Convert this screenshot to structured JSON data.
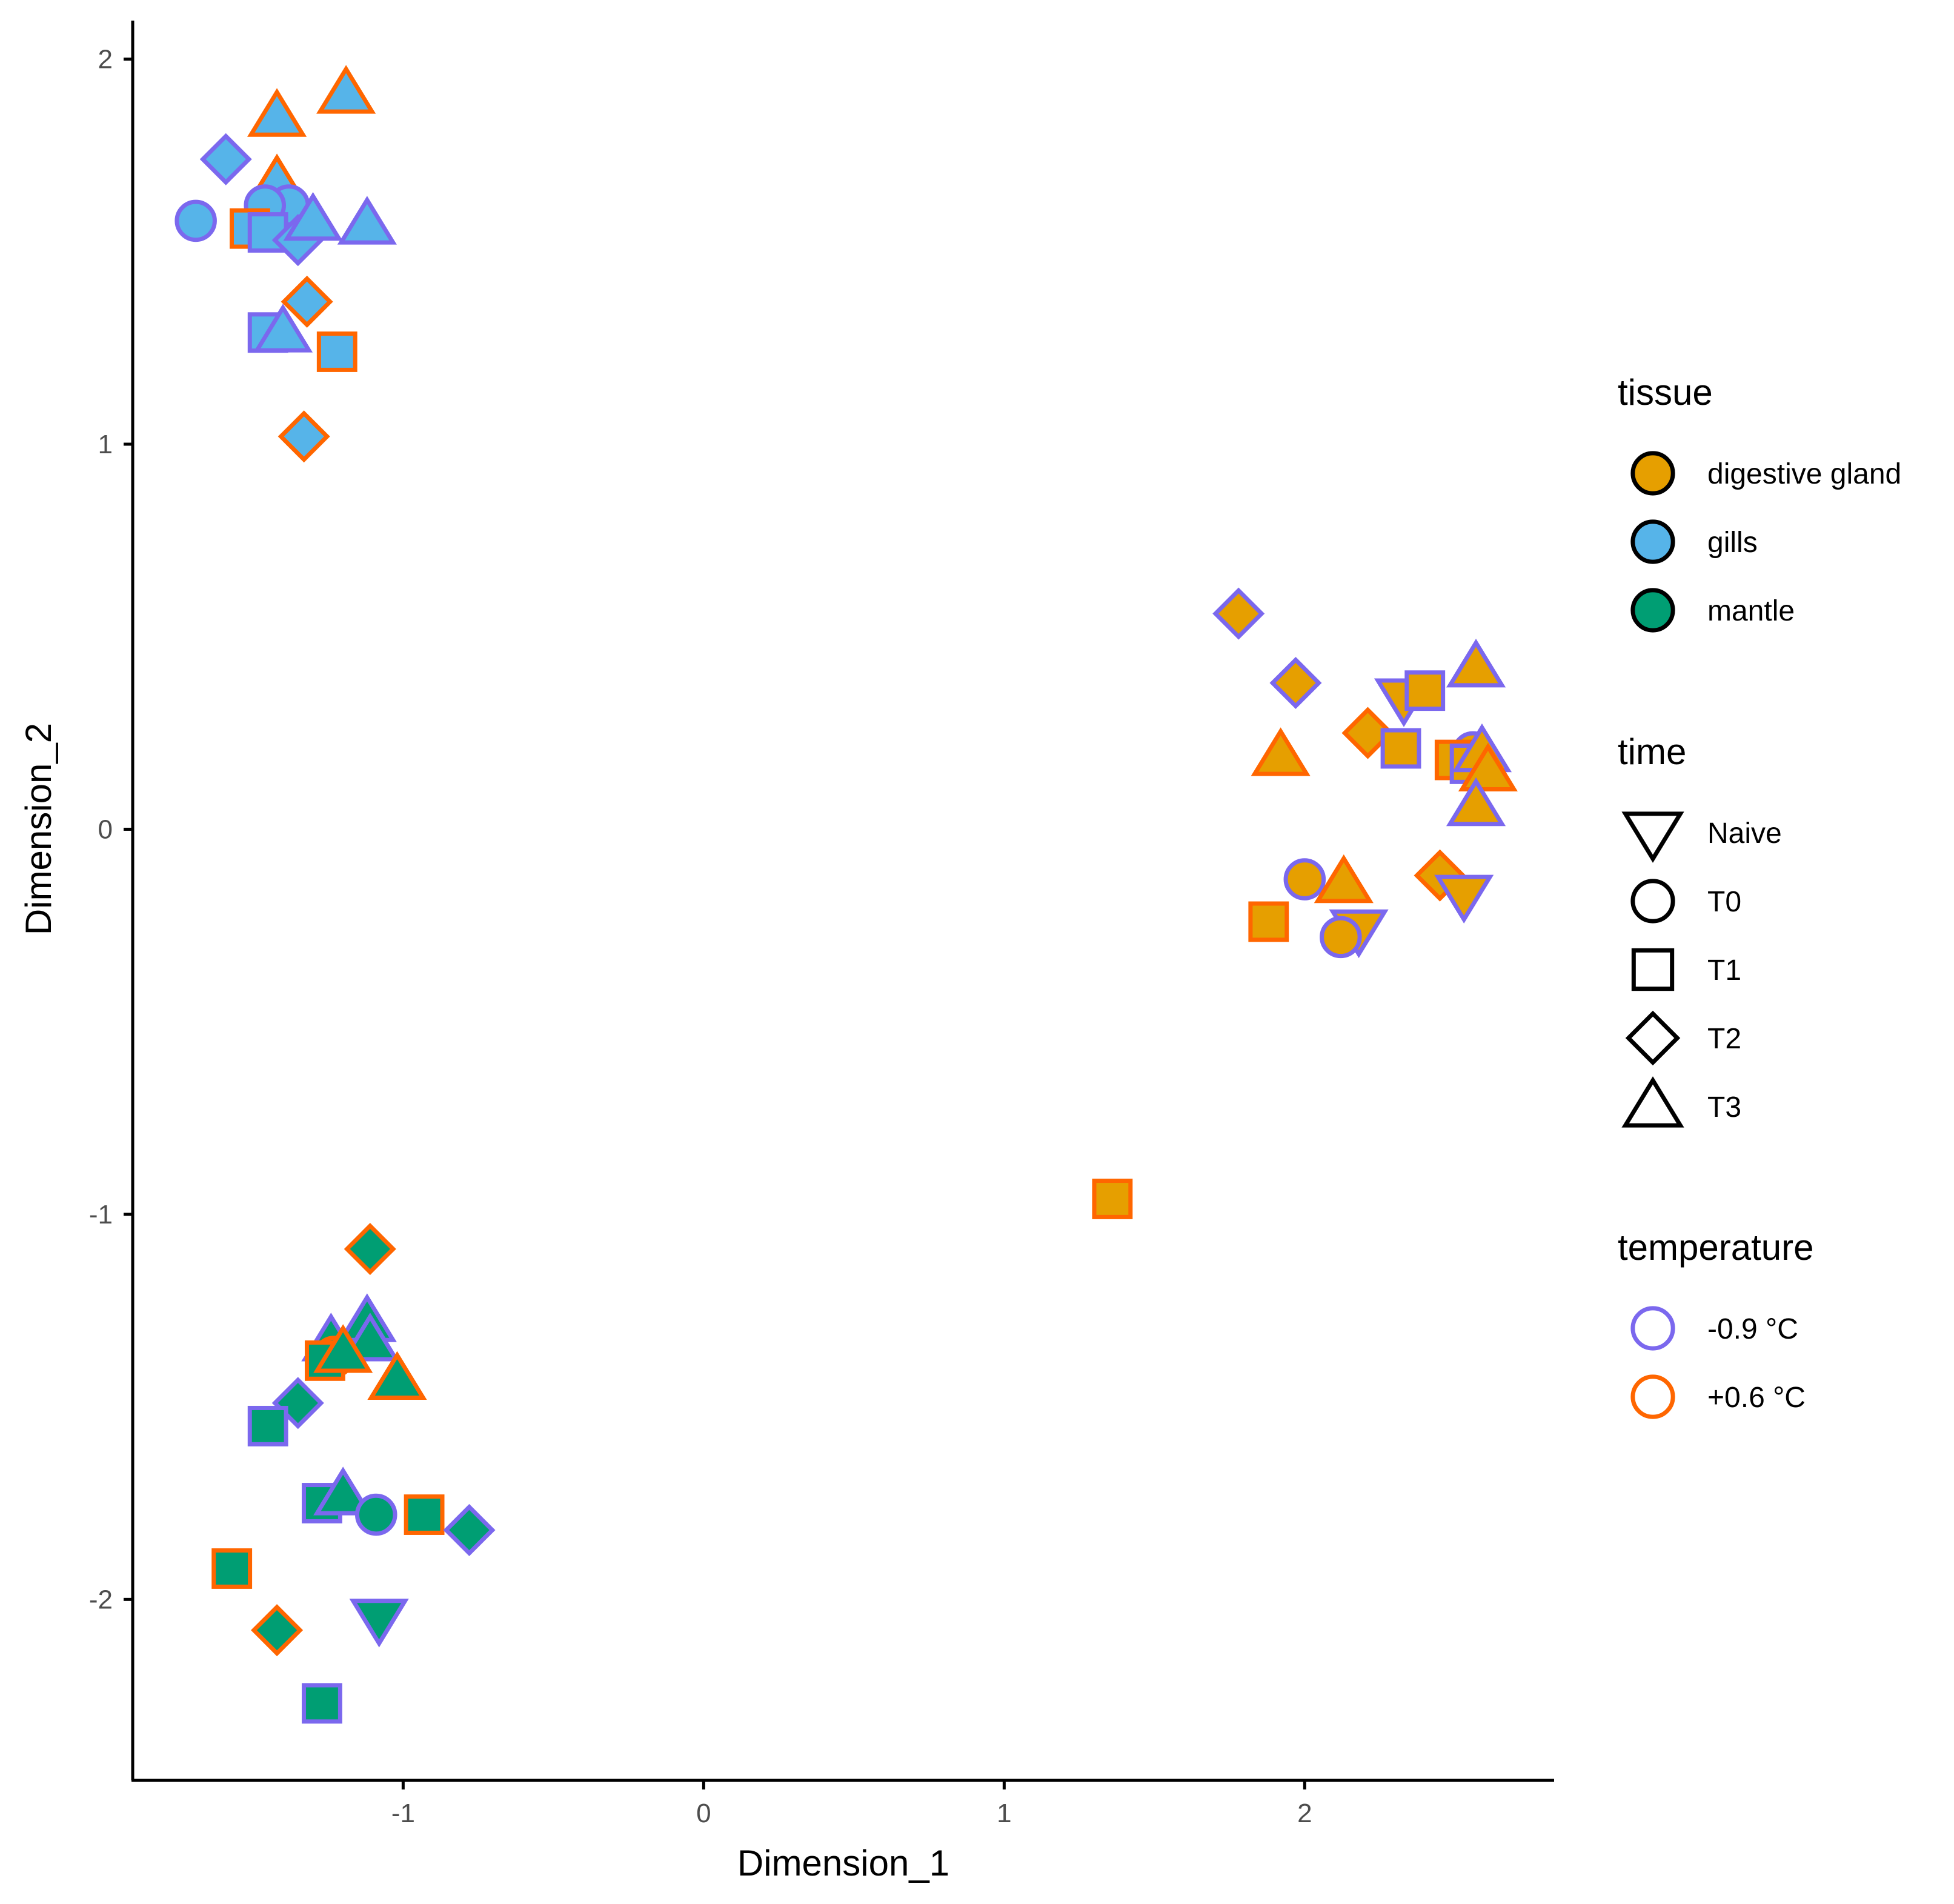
{
  "chart_data": {
    "type": "scatter",
    "xlabel": "Dimension_1",
    "ylabel": "Dimension_2",
    "xlim": [
      -1.9,
      2.83
    ],
    "ylim": [
      -2.47,
      2.1
    ],
    "xticks": [
      -1,
      0,
      1,
      2
    ],
    "yticks": [
      -2,
      -1,
      0,
      1,
      2
    ],
    "xtick_labels": [
      "-1",
      "0",
      "1",
      "2"
    ],
    "ytick_labels": [
      "-2",
      "-1",
      "0",
      "1",
      "2"
    ],
    "grid": false,
    "legend_position": "right",
    "colors": {
      "digestive gland": "#E69F00",
      "gills": "#56B4E9",
      "mantle": "#009E73",
      "-0.9 °C": "#7B68EE",
      "+0.6 °C": "#FF6600"
    },
    "legends": [
      {
        "title": "tissue",
        "kind": "fill",
        "items": [
          {
            "label": "digestive gland",
            "fill": "#E69F00"
          },
          {
            "label": "gills",
            "fill": "#56B4E9"
          },
          {
            "label": "mantle",
            "fill": "#009E73"
          }
        ]
      },
      {
        "title": "time",
        "kind": "shape",
        "items": [
          {
            "label": "Naive",
            "shape": "triangle-down"
          },
          {
            "label": "T0",
            "shape": "circle"
          },
          {
            "label": "T1",
            "shape": "square"
          },
          {
            "label": "T2",
            "shape": "diamond"
          },
          {
            "label": "T3",
            "shape": "triangle-up"
          }
        ]
      },
      {
        "title": "temperature",
        "kind": "stroke",
        "items": [
          {
            "label": "-0.9 °C",
            "stroke": "#7B68EE"
          },
          {
            "label": "+0.6 °C",
            "stroke": "#FF6600"
          }
        ]
      }
    ],
    "series_fields": [
      "x",
      "y",
      "tissue",
      "time",
      "temperature"
    ],
    "points": [
      [
        -1.42,
        1.85,
        "gills",
        "T3",
        "+0.6 °C"
      ],
      [
        -1.19,
        1.91,
        "gills",
        "T3",
        "+0.6 °C"
      ],
      [
        -1.59,
        1.74,
        "gills",
        "T2",
        "-0.9 °C"
      ],
      [
        -1.42,
        1.68,
        "gills",
        "T3",
        "+0.6 °C"
      ],
      [
        -1.38,
        1.62,
        "gills",
        "T0",
        "-0.9 °C"
      ],
      [
        -1.46,
        1.62,
        "gills",
        "T0",
        "-0.9 °C"
      ],
      [
        -1.69,
        1.58,
        "gills",
        "T0",
        "-0.9 °C"
      ],
      [
        -1.51,
        1.56,
        "gills",
        "T1",
        "+0.6 °C"
      ],
      [
        -1.45,
        1.55,
        "gills",
        "T1",
        "-0.9 °C"
      ],
      [
        -1.35,
        1.53,
        "gills",
        "T2",
        "-0.9 °C"
      ],
      [
        -1.3,
        1.58,
        "gills",
        "T3",
        "-0.9 °C"
      ],
      [
        -1.12,
        1.57,
        "gills",
        "T3",
        "-0.9 °C"
      ],
      [
        -1.32,
        1.37,
        "gills",
        "T2",
        "+0.6 °C"
      ],
      [
        -1.45,
        1.29,
        "gills",
        "T1",
        "-0.9 °C"
      ],
      [
        -1.4,
        1.29,
        "gills",
        "T3",
        "-0.9 °C"
      ],
      [
        -1.22,
        1.24,
        "gills",
        "T1",
        "+0.6 °C"
      ],
      [
        -1.33,
        1.02,
        "gills",
        "T2",
        "+0.6 °C"
      ],
      [
        1.78,
        0.56,
        "digestive gland",
        "T2",
        "-0.9 °C"
      ],
      [
        1.97,
        0.38,
        "digestive gland",
        "T2",
        "-0.9 °C"
      ],
      [
        2.33,
        0.34,
        "digestive gland",
        "Naive",
        "-0.9 °C"
      ],
      [
        2.4,
        0.36,
        "digestive gland",
        "T1",
        "-0.9 °C"
      ],
      [
        2.57,
        0.42,
        "digestive gland",
        "T3",
        "-0.9 °C"
      ],
      [
        2.21,
        0.25,
        "digestive gland",
        "T2",
        "+0.6 °C"
      ],
      [
        2.32,
        0.21,
        "digestive gland",
        "T1",
        "-0.9 °C"
      ],
      [
        1.92,
        0.19,
        "digestive gland",
        "T3",
        "+0.6 °C"
      ],
      [
        2.56,
        0.2,
        "digestive gland",
        "T0",
        "-0.9 °C"
      ],
      [
        2.5,
        0.18,
        "digestive gland",
        "T1",
        "+0.6 °C"
      ],
      [
        2.55,
        0.17,
        "digestive gland",
        "T1",
        "-0.9 °C"
      ],
      [
        2.59,
        0.2,
        "digestive gland",
        "T3",
        "-0.9 °C"
      ],
      [
        2.61,
        0.15,
        "digestive gland",
        "T3",
        "+0.6 °C"
      ],
      [
        2.57,
        0.06,
        "digestive gland",
        "T3",
        "-0.9 °C"
      ],
      [
        2.0,
        -0.13,
        "digestive gland",
        "T0",
        "-0.9 °C"
      ],
      [
        2.13,
        -0.14,
        "digestive gland",
        "T3",
        "+0.6 °C"
      ],
      [
        2.45,
        -0.12,
        "digestive gland",
        "T2",
        "+0.6 °C"
      ],
      [
        2.53,
        -0.17,
        "digestive gland",
        "Naive",
        "-0.9 °C"
      ],
      [
        1.88,
        -0.24,
        "digestive gland",
        "T1",
        "+0.6 °C"
      ],
      [
        2.18,
        -0.26,
        "digestive gland",
        "Naive",
        "-0.9 °C"
      ],
      [
        2.12,
        -0.28,
        "digestive gland",
        "T0",
        "-0.9 °C"
      ],
      [
        1.36,
        -0.96,
        "digestive gland",
        "T1",
        "+0.6 °C"
      ],
      [
        -1.11,
        -1.09,
        "mantle",
        "T2",
        "+0.6 °C"
      ],
      [
        -1.12,
        -1.28,
        "mantle",
        "T3",
        "-0.9 °C"
      ],
      [
        -1.24,
        -1.33,
        "mantle",
        "T3",
        "-0.9 °C"
      ],
      [
        -1.11,
        -1.33,
        "mantle",
        "T3",
        "-0.9 °C"
      ],
      [
        -1.23,
        -1.37,
        "mantle",
        "T0",
        "+0.6 °C"
      ],
      [
        -1.26,
        -1.38,
        "mantle",
        "T1",
        "+0.6 °C"
      ],
      [
        -1.2,
        -1.36,
        "mantle",
        "T3",
        "+0.6 °C"
      ],
      [
        -1.02,
        -1.43,
        "mantle",
        "T3",
        "+0.6 °C"
      ],
      [
        -1.35,
        -1.49,
        "mantle",
        "T2",
        "-0.9 °C"
      ],
      [
        -1.45,
        -1.55,
        "mantle",
        "T1",
        "-0.9 °C"
      ],
      [
        -1.27,
        -1.75,
        "mantle",
        "T1",
        "-0.9 °C"
      ],
      [
        -1.2,
        -1.73,
        "mantle",
        "T3",
        "-0.9 °C"
      ],
      [
        -1.09,
        -1.78,
        "mantle",
        "T0",
        "-0.9 °C"
      ],
      [
        -0.93,
        -1.78,
        "mantle",
        "T1",
        "+0.6 °C"
      ],
      [
        -0.78,
        -1.82,
        "mantle",
        "T2",
        "-0.9 °C"
      ],
      [
        -1.57,
        -1.92,
        "mantle",
        "T1",
        "+0.6 °C"
      ],
      [
        -1.42,
        -2.08,
        "mantle",
        "T2",
        "+0.6 °C"
      ],
      [
        -1.08,
        -2.05,
        "mantle",
        "Naive",
        "-0.9 °C"
      ],
      [
        -1.27,
        -2.27,
        "mantle",
        "T1",
        "-0.9 °C"
      ]
    ]
  }
}
